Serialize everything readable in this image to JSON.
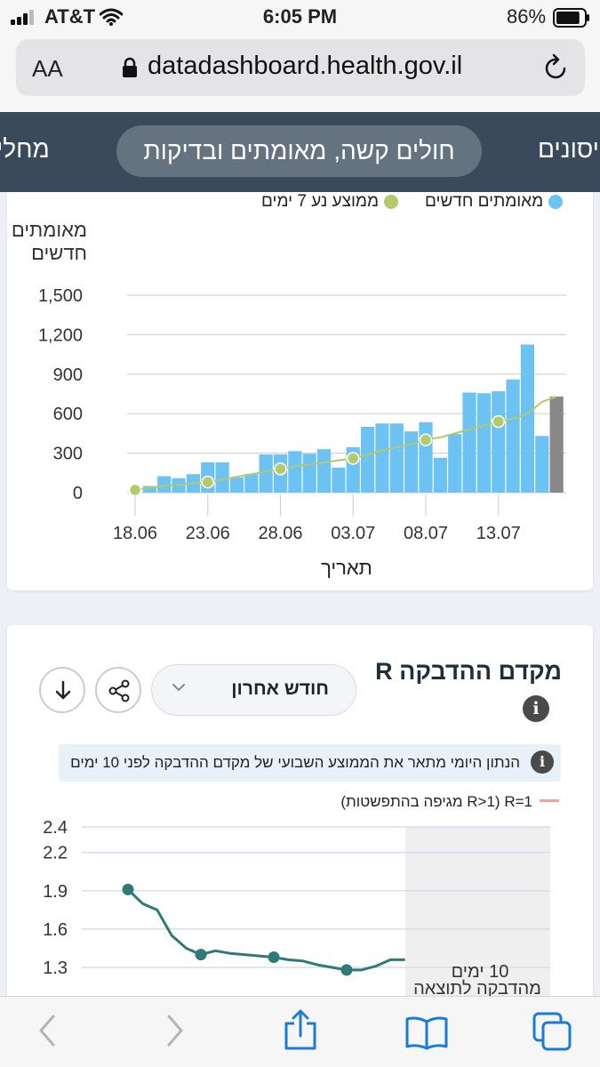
{
  "status_bar": {
    "carrier": "AT&T",
    "time": "6:05 PM",
    "battery": "86%",
    "battery_level": 0.86
  },
  "url_bar": {
    "aa_label": "AA",
    "url": "datadashboard.health.gov.il"
  },
  "nav": {
    "tabs": [
      {
        "label": "מחלי",
        "active": false
      },
      {
        "label": "חולים קשה, מאומתים ובדיקות",
        "active": true
      },
      {
        "label": "ויסונים",
        "active": false
      }
    ]
  },
  "colors": {
    "bar": "#6cc2f2",
    "bar_incomplete": "#888888",
    "avg_line": "#b3c96a",
    "r_line": "#2f7a78",
    "r1_line": "#f4a393",
    "nav_bg": "#3b4a5a"
  },
  "cases_chart": {
    "legend": {
      "new_cases": "מאומתים חדשים",
      "avg7": "ממוצע נע 7 ימים"
    },
    "y_title": "מאומתים חדשים",
    "x_title": "תאריך"
  },
  "r_card": {
    "title": "מקדם ההדבקה R",
    "dropdown_label": "חודש אחרון",
    "info_text": "הנתון היומי מתאר את הממוצע השבועי של מקדם ההדבקה לפני 10 ימים",
    "legend_r1": "R=1",
    "legend_text": "(R>1 מגיפה בהתפשטות)",
    "shaded_label_line1": "10 ימים",
    "shaded_label_line2": "מהדבקה לתוצאה"
  },
  "chart_data": [
    {
      "type": "bar",
      "title": "",
      "xlabel": "תאריך",
      "ylabel": "מאומתים חדשים",
      "ylim": [
        0,
        1500
      ],
      "yticks": [
        0,
        300,
        600,
        900,
        1200,
        1500
      ],
      "ytick_labels": [
        "0",
        "300",
        "600",
        "900",
        "1,200",
        "1,500"
      ],
      "xtick_labels": [
        "18.06",
        "23.06",
        "28.06",
        "03.07",
        "08.07",
        "13.07"
      ],
      "xtick_positions": [
        0,
        5,
        10,
        15,
        20,
        25
      ],
      "grid": true,
      "legend_position": "top",
      "series": [
        {
          "name": "מאומתים חדשים",
          "type": "bar",
          "values": [
            0,
            50,
            125,
            110,
            140,
            230,
            230,
            115,
            140,
            290,
            290,
            315,
            295,
            330,
            190,
            345,
            500,
            525,
            525,
            465,
            535,
            265,
            445,
            760,
            755,
            770,
            860,
            1125,
            430,
            730
          ],
          "last_point_incomplete": true
        },
        {
          "name": "ממוצע נע 7 ימים",
          "type": "line",
          "values": [
            20,
            35,
            50,
            60,
            70,
            80,
            100,
            120,
            140,
            160,
            180,
            200,
            215,
            230,
            245,
            260,
            290,
            320,
            345,
            370,
            400,
            420,
            450,
            480,
            510,
            540,
            560,
            600,
            690,
            730
          ],
          "markers_at": [
            0,
            5,
            10,
            15,
            20,
            25
          ]
        }
      ]
    },
    {
      "type": "line",
      "title": "מקדם ההדבקה R",
      "ylim": [
        1.2,
        2.4
      ],
      "yticks": [
        1.3,
        1.6,
        1.9,
        2.2,
        2.4
      ],
      "ytick_labels": [
        "1.3",
        "1.6",
        "1.9",
        "2.2",
        "2.4"
      ],
      "grid": true,
      "series": [
        {
          "name": "R",
          "values": [
            1.91,
            1.8,
            1.75,
            1.55,
            1.45,
            1.4,
            1.43,
            1.41,
            1.4,
            1.39,
            1.38,
            1.36,
            1.35,
            1.32,
            1.3,
            1.28,
            1.28,
            1.31,
            1.36,
            1.36
          ],
          "markers_at": [
            0,
            5,
            10,
            15
          ]
        }
      ]
    }
  ]
}
